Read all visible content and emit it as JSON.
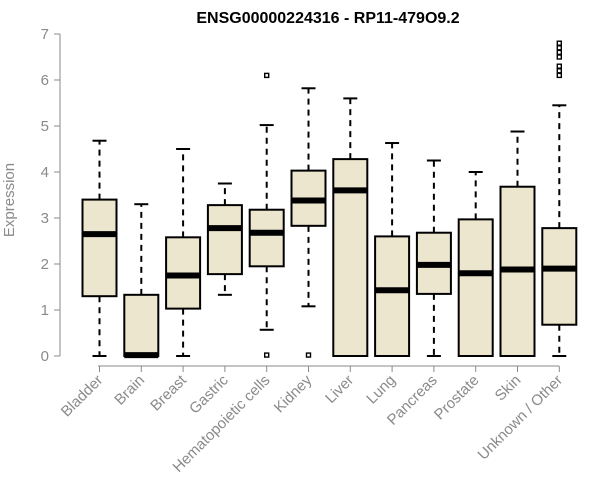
{
  "chart_data": {
    "type": "box",
    "title": "ENSG00000224316 - RP11-479O9.2",
    "ylabel": "Expression",
    "ylim": [
      0,
      7
    ],
    "yticks": [
      0,
      1,
      2,
      3,
      4,
      5,
      6,
      7
    ],
    "colors": {
      "box_fill": "#ede6ce",
      "box_stroke": "#000000",
      "axis": "#8a8a8a"
    },
    "categories": [
      "Bladder",
      "Brain",
      "Breast",
      "Gastric",
      "Hematopoietic cells",
      "Kidney",
      "Liver",
      "Lung",
      "Pancreas",
      "Prostate",
      "Skin",
      "Unknown / Other"
    ],
    "boxes": [
      {
        "name": "Bladder",
        "whisker_low": 0,
        "q1": 1.3,
        "median": 2.65,
        "q3": 3.4,
        "whisker_high": 4.68,
        "outliers": []
      },
      {
        "name": "Brain",
        "whisker_low": 0,
        "q1": 0,
        "median": 0.02,
        "q3": 1.33,
        "whisker_high": 3.3,
        "outliers": []
      },
      {
        "name": "Breast",
        "whisker_low": 0,
        "q1": 1.03,
        "median": 1.75,
        "q3": 2.58,
        "whisker_high": 4.5,
        "outliers": []
      },
      {
        "name": "Gastric",
        "whisker_low": 1.33,
        "q1": 1.78,
        "median": 2.78,
        "q3": 3.28,
        "whisker_high": 3.75,
        "outliers": []
      },
      {
        "name": "Hematopoietic cells",
        "whisker_low": 0.57,
        "q1": 1.95,
        "median": 2.68,
        "q3": 3.18,
        "whisker_high": 5.02,
        "outliers": [
          0.02,
          6.1
        ]
      },
      {
        "name": "Kidney",
        "whisker_low": 1.08,
        "q1": 2.83,
        "median": 3.38,
        "q3": 4.03,
        "whisker_high": 5.82,
        "outliers": [
          0.02
        ]
      },
      {
        "name": "Liver",
        "whisker_low": 0,
        "q1": 0,
        "median": 3.6,
        "q3": 4.28,
        "whisker_high": 5.6,
        "outliers": []
      },
      {
        "name": "Lung",
        "whisker_low": 0,
        "q1": 0,
        "median": 1.43,
        "q3": 2.6,
        "whisker_high": 4.63,
        "outliers": []
      },
      {
        "name": "Pancreas",
        "whisker_low": 0,
        "q1": 1.35,
        "median": 1.98,
        "q3": 2.68,
        "whisker_high": 4.25,
        "outliers": []
      },
      {
        "name": "Prostate",
        "whisker_low": 0,
        "q1": 0,
        "median": 1.8,
        "q3": 2.97,
        "whisker_high": 4.0,
        "outliers": []
      },
      {
        "name": "Skin",
        "whisker_low": 0,
        "q1": 0,
        "median": 1.88,
        "q3": 3.68,
        "whisker_high": 4.88,
        "outliers": []
      },
      {
        "name": "Unknown / Other",
        "whisker_low": 0,
        "q1": 0.68,
        "median": 1.9,
        "q3": 2.78,
        "whisker_high": 5.45,
        "outliers": [
          6.1,
          6.2,
          6.3,
          6.5,
          6.6,
          6.7,
          6.8
        ]
      }
    ]
  }
}
